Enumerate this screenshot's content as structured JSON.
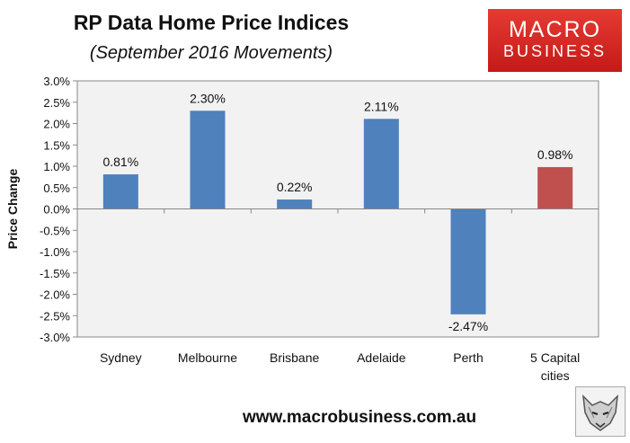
{
  "header": {
    "title": "RP Data Home Price Indices",
    "subtitle": "(September 2016 Movements)"
  },
  "logo": {
    "line1": "MACRO",
    "line2": "BUSINESS"
  },
  "footer": {
    "website": "www.macrobusiness.com.au"
  },
  "colors": {
    "bar": "#4f81bd",
    "highlight_bar": "#c0504d",
    "plot_bg": "#f2f2f2",
    "logo_red": "#d92b25"
  },
  "icons": {
    "mascot": "wolf-head-icon"
  },
  "chart_data": {
    "type": "bar",
    "title": "RP Data Home Price Indices",
    "subtitle": "(September 2016 Movements)",
    "xlabel": "",
    "ylabel": "Price Change",
    "ylim": [
      -3.0,
      3.0
    ],
    "ytick_step": 0.5,
    "y_format": "percent",
    "grid": false,
    "categories": [
      "Sydney",
      "Melbourne",
      "Brisbane",
      "Adelaide",
      "Perth",
      "5 Capital cities"
    ],
    "category_lines": [
      [
        "Sydney"
      ],
      [
        "Melbourne"
      ],
      [
        "Brisbane"
      ],
      [
        "Adelaide"
      ],
      [
        "Perth"
      ],
      [
        "5 Capital",
        "cities"
      ]
    ],
    "values": [
      0.81,
      2.3,
      0.22,
      2.11,
      -2.47,
      0.98
    ],
    "data_labels": [
      "0.81%",
      "2.30%",
      "0.22%",
      "2.11%",
      "-2.47%",
      "0.98%"
    ],
    "highlight_index": 5
  }
}
